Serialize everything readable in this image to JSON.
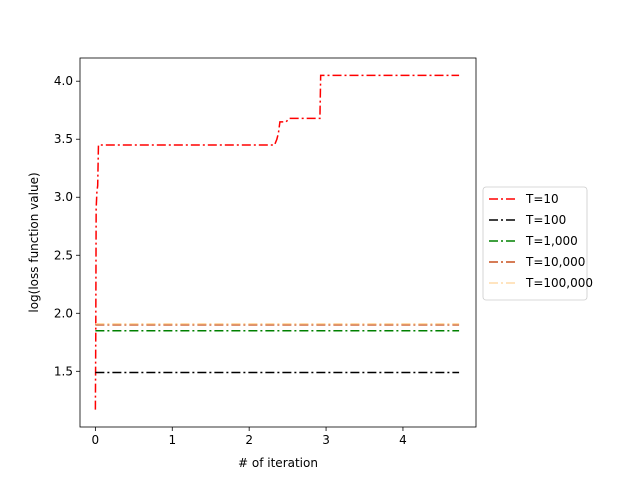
{
  "chart_data": {
    "type": "line",
    "title": "",
    "xlabel": "# of iteration",
    "ylabel": "log(loss function value)",
    "xlim": [
      -0.2,
      4.95
    ],
    "ylim": [
      1.02,
      4.2
    ],
    "xticks": [
      0,
      1,
      2,
      3,
      4
    ],
    "xtick_labels": [
      "0",
      "1",
      "2",
      "3",
      "4"
    ],
    "yticks": [
      1.5,
      2.0,
      2.5,
      3.0,
      3.5,
      4.0
    ],
    "ytick_labels": [
      "1.5",
      "2.0",
      "2.5",
      "3.0",
      "3.5",
      "4.0"
    ],
    "grid": false,
    "legend_position": "outside-right",
    "series": [
      {
        "name": "T=10",
        "color": "#ff0000",
        "points": [
          [
            0,
            1.17
          ],
          [
            0.005,
            1.8
          ],
          [
            0.01,
            2.9
          ],
          [
            0.02,
            3.05
          ],
          [
            0.03,
            3.1
          ],
          [
            0.04,
            3.45
          ],
          [
            2.33,
            3.45
          ],
          [
            2.36,
            3.5
          ],
          [
            2.38,
            3.55
          ],
          [
            2.4,
            3.65
          ],
          [
            2.48,
            3.65
          ],
          [
            2.52,
            3.68
          ],
          [
            2.92,
            3.68
          ],
          [
            2.93,
            4.05
          ],
          [
            4.73,
            4.05
          ]
        ]
      },
      {
        "name": "T=100",
        "color": "#000000",
        "points": [
          [
            0,
            1.49
          ],
          [
            4.73,
            1.49
          ]
        ]
      },
      {
        "name": "T=1,000",
        "color": "#008000",
        "points": [
          [
            0,
            1.85
          ],
          [
            4.73,
            1.85
          ]
        ]
      },
      {
        "name": "T=10,000",
        "color": "#c8501e",
        "points": [
          [
            0,
            1.9
          ],
          [
            4.73,
            1.9
          ]
        ]
      },
      {
        "name": "T=100,000",
        "color": "#ffdcaa",
        "points": [
          [
            0,
            1.91
          ],
          [
            4.73,
            1.91
          ]
        ]
      }
    ]
  }
}
